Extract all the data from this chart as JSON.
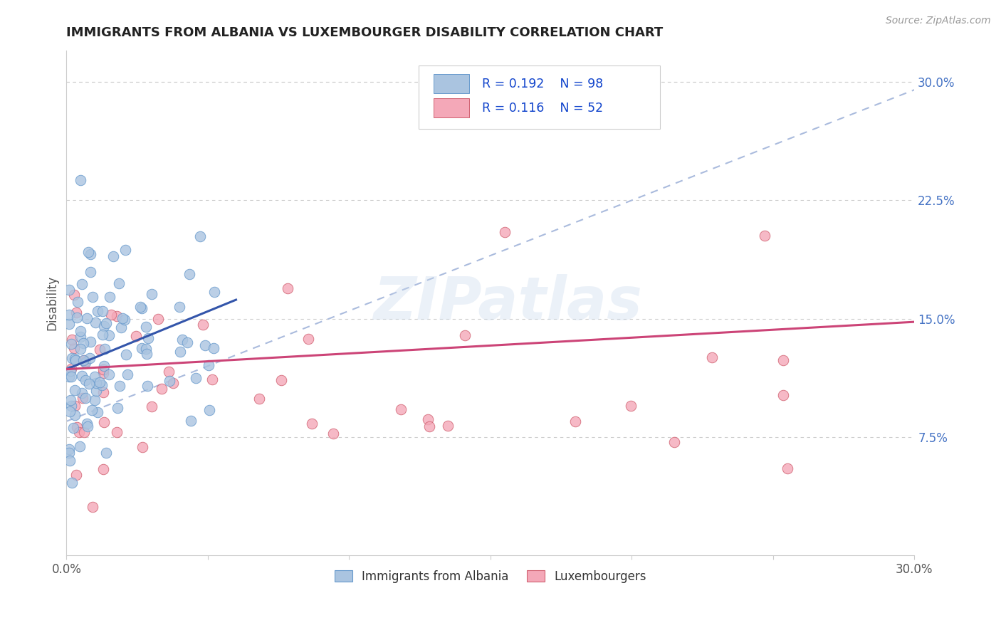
{
  "title": "IMMIGRANTS FROM ALBANIA VS LUXEMBOURGER DISABILITY CORRELATION CHART",
  "source": "Source: ZipAtlas.com",
  "ylabel": "Disability",
  "xlim": [
    0.0,
    0.3
  ],
  "ylim": [
    0.0,
    0.32
  ],
  "yticks_right": [
    0.075,
    0.15,
    0.225,
    0.3
  ],
  "yticks_right_labels": [
    "7.5%",
    "15.0%",
    "22.5%",
    "30.0%"
  ],
  "grid_color": "#cccccc",
  "background_color": "#ffffff",
  "albania_color": "#aac4e0",
  "luxembourg_color": "#f4a8b8",
  "albania_edge": "#6699cc",
  "luxembourg_edge": "#d06070",
  "trend_albania_solid_color": "#3355aa",
  "trend_dashed_color": "#aabbdd",
  "trend_luxembourg_color": "#cc4477",
  "r_albania": 0.192,
  "n_albania": 98,
  "r_luxembourg": 0.116,
  "n_luxembourg": 52,
  "watermark_text": "ZIPatlas",
  "seed": 12345,
  "albania_trend_x0": 0.0,
  "albania_trend_x1": 0.06,
  "albania_trend_y0": 0.118,
  "albania_trend_y1": 0.162,
  "dashed_trend_x0": 0.0,
  "dashed_trend_x1": 0.3,
  "dashed_trend_y0": 0.085,
  "dashed_trend_y1": 0.295,
  "lux_trend_x0": 0.0,
  "lux_trend_x1": 0.3,
  "lux_trend_y0": 0.118,
  "lux_trend_y1": 0.148
}
